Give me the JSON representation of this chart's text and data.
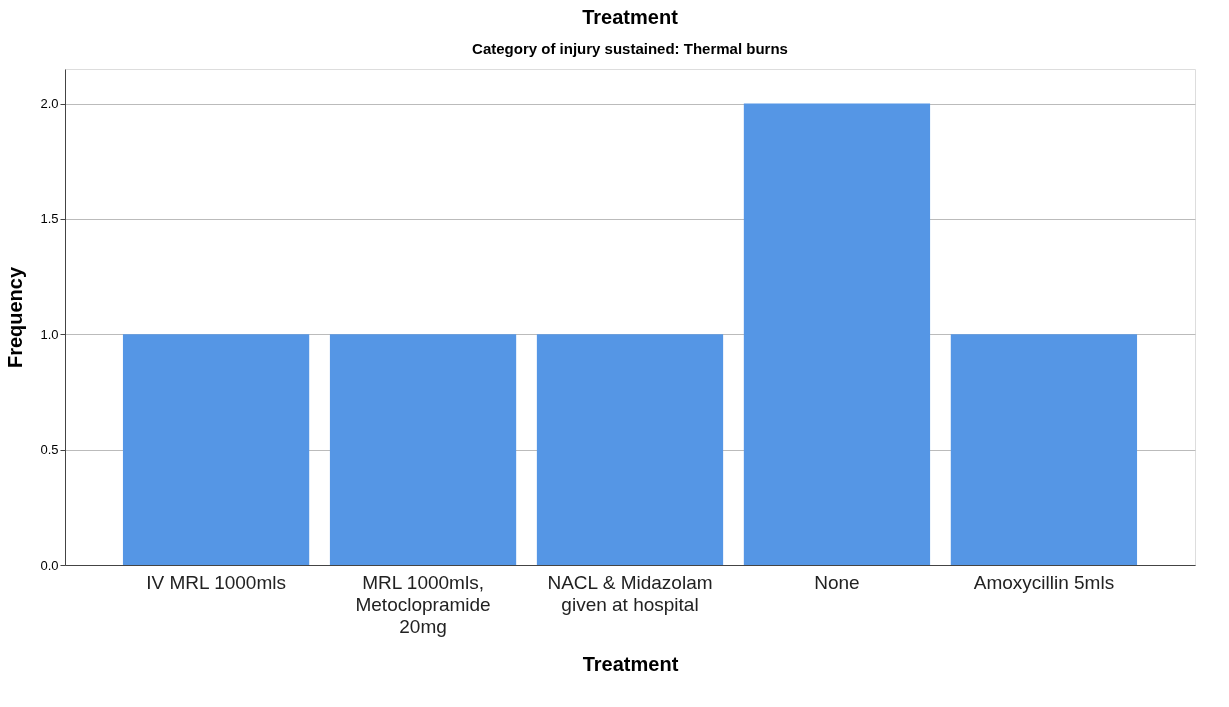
{
  "chart_data": {
    "type": "bar",
    "title": "Treatment",
    "subtitle": "Category of injury sustained: Thermal burns",
    "xlabel": "Treatment",
    "ylabel": "Frequency",
    "categories": [
      "IV MRL 1000mls",
      "MRL 1000mls, Metoclopramide 20mg",
      "NACL & Midazolam given at hospital",
      "None",
      "Amoxycillin 5mls"
    ],
    "values": [
      1,
      1,
      1,
      2,
      1
    ],
    "color": "#5596e5",
    "ylim": [
      0,
      2.15
    ],
    "yticks": [
      {
        "value": 0,
        "label": "0.0"
      },
      {
        "value": 0.5,
        "label": "0.5"
      },
      {
        "value": 1,
        "label": "1.0"
      },
      {
        "value": 1.5,
        "label": "1.5"
      },
      {
        "value": 2,
        "label": "2.0"
      }
    ],
    "grid": "y"
  }
}
